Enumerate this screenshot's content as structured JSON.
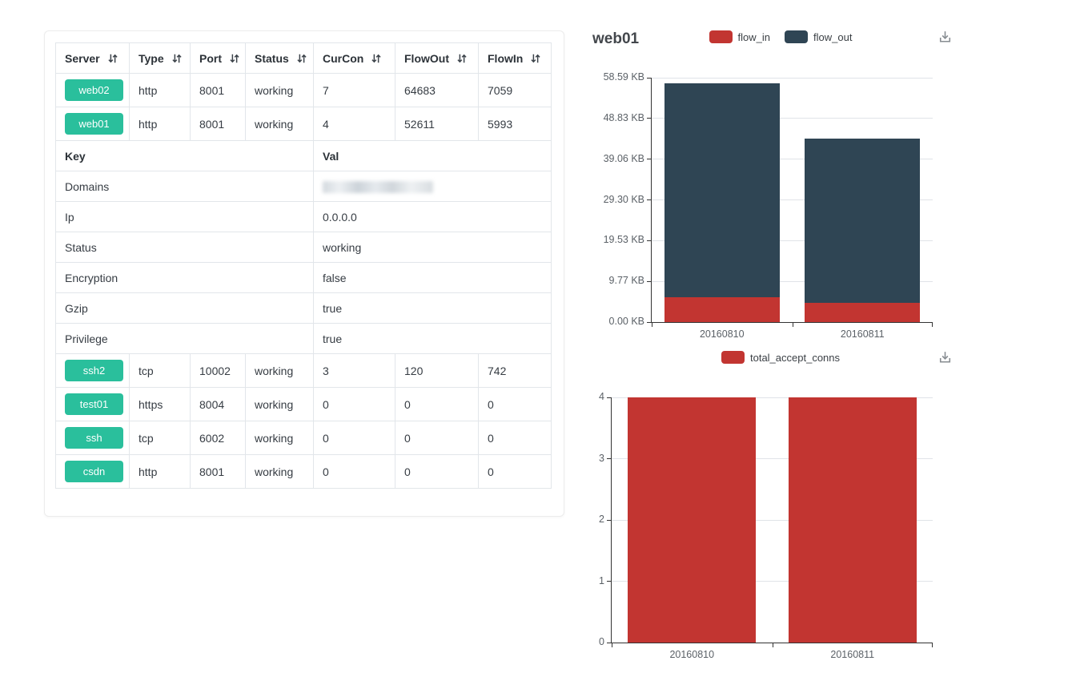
{
  "colors": {
    "accent_green": "#2abf9c",
    "bar_red": "#c23531",
    "bar_dark": "#2f4554",
    "axis": "#333333",
    "grid": "#e0e3e8"
  },
  "icons": {
    "sort": "sort-arrows-icon",
    "download": "download-icon"
  },
  "table": {
    "headers": [
      "Server",
      "Type",
      "Port",
      "Status",
      "CurCon",
      "FlowOut",
      "FlowIn"
    ],
    "server_rows_top": [
      {
        "server": "web02",
        "type": "http",
        "port": "8001",
        "status": "working",
        "curcon": "7",
        "flowout": "64683",
        "flowin": "7059"
      },
      {
        "server": "web01",
        "type": "http",
        "port": "8001",
        "status": "working",
        "curcon": "4",
        "flowout": "52611",
        "flowin": "5993"
      }
    ],
    "kv_header": {
      "key": "Key",
      "val": "Val"
    },
    "kv_rows": [
      {
        "key": "Domains",
        "value": "",
        "masked": true
      },
      {
        "key": "Ip",
        "value": "0.0.0.0"
      },
      {
        "key": "Status",
        "value": "working"
      },
      {
        "key": "Encryption",
        "value": "false"
      },
      {
        "key": "Gzip",
        "value": "true"
      },
      {
        "key": "Privilege",
        "value": "true"
      }
    ],
    "server_rows_bottom": [
      {
        "server": "ssh2",
        "type": "tcp",
        "port": "10002",
        "status": "working",
        "curcon": "3",
        "flowout": "120",
        "flowin": "742"
      },
      {
        "server": "test01",
        "type": "https",
        "port": "8004",
        "status": "working",
        "curcon": "0",
        "flowout": "0",
        "flowin": "0"
      },
      {
        "server": "ssh",
        "type": "tcp",
        "port": "6002",
        "status": "working",
        "curcon": "0",
        "flowout": "0",
        "flowin": "0"
      },
      {
        "server": "csdn",
        "type": "http",
        "port": "8001",
        "status": "working",
        "curcon": "0",
        "flowout": "0",
        "flowin": "0"
      }
    ]
  },
  "chart_data": [
    {
      "type": "bar",
      "stacked": true,
      "title": "web01",
      "categories": [
        "20160810",
        "20160811"
      ],
      "series": [
        {
          "name": "flow_in",
          "color": "#c23531",
          "values": [
            5.9,
            4.7
          ]
        },
        {
          "name": "flow_out",
          "color": "#2f4554",
          "values": [
            51.4,
            39.3
          ]
        }
      ],
      "unit": "KB",
      "ymax": 58.59,
      "ylim": [
        0,
        58.59
      ],
      "yticks": [
        "0.00 KB",
        "9.77 KB",
        "19.53 KB",
        "29.30 KB",
        "39.06 KB",
        "48.83 KB",
        "58.59 KB"
      ],
      "legend_position": "top-center",
      "grid": "horizontal"
    },
    {
      "type": "bar",
      "stacked": false,
      "title": "",
      "categories": [
        "20160810",
        "20160811"
      ],
      "series": [
        {
          "name": "total_accept_conns",
          "color": "#c23531",
          "values": [
            4,
            4
          ]
        }
      ],
      "ymax": 4,
      "ylim": [
        0,
        4
      ],
      "yticks": [
        "0",
        "1",
        "2",
        "3",
        "4"
      ],
      "legend_position": "top-center",
      "grid": "horizontal"
    }
  ]
}
